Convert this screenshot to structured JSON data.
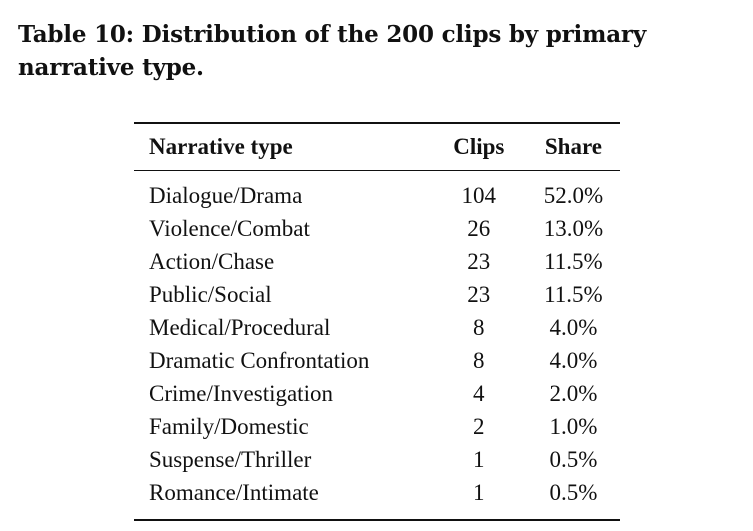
{
  "caption": "Table 10: Distribution of the 200 clips by primary narrative type.",
  "table": {
    "headers": [
      "Narrative type",
      "Clips",
      "Share"
    ],
    "rows": [
      {
        "type": "Dialogue/Drama",
        "clips": "104",
        "share": "52.0%"
      },
      {
        "type": "Violence/Combat",
        "clips": "26",
        "share": "13.0%"
      },
      {
        "type": "Action/Chase",
        "clips": "23",
        "share": "11.5%"
      },
      {
        "type": "Public/Social",
        "clips": "23",
        "share": "11.5%"
      },
      {
        "type": "Medical/Procedural",
        "clips": "8",
        "share": "4.0%"
      },
      {
        "type": "Dramatic Confrontation",
        "clips": "8",
        "share": "4.0%"
      },
      {
        "type": "Crime/Investigation",
        "clips": "4",
        "share": "2.0%"
      },
      {
        "type": "Family/Domestic",
        "clips": "2",
        "share": "1.0%"
      },
      {
        "type": "Suspense/Thriller",
        "clips": "1",
        "share": "0.5%"
      },
      {
        "type": "Romance/Intimate",
        "clips": "1",
        "share": "0.5%"
      }
    ]
  }
}
